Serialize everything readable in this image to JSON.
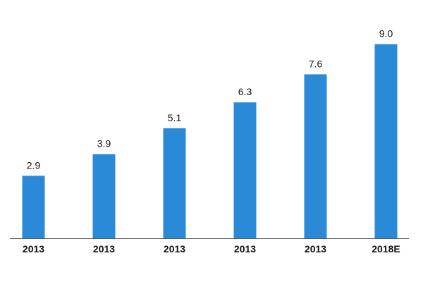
{
  "chart_data": {
    "type": "bar",
    "categories": [
      "2013",
      "2013",
      "2013",
      "2013",
      "2013",
      "2018E"
    ],
    "values": [
      2.9,
      3.9,
      5.1,
      6.3,
      7.6,
      9.0
    ],
    "value_labels": [
      "2.9",
      "3.9",
      "5.1",
      "6.3",
      "7.6",
      "9.0"
    ],
    "title": "",
    "xlabel": "",
    "ylabel": "",
    "ylim": [
      0,
      10
    ],
    "grid": false,
    "legend": "none",
    "colors": {
      "bar": "#2b8ad8",
      "axis": "#555555",
      "text": "#111111"
    }
  }
}
